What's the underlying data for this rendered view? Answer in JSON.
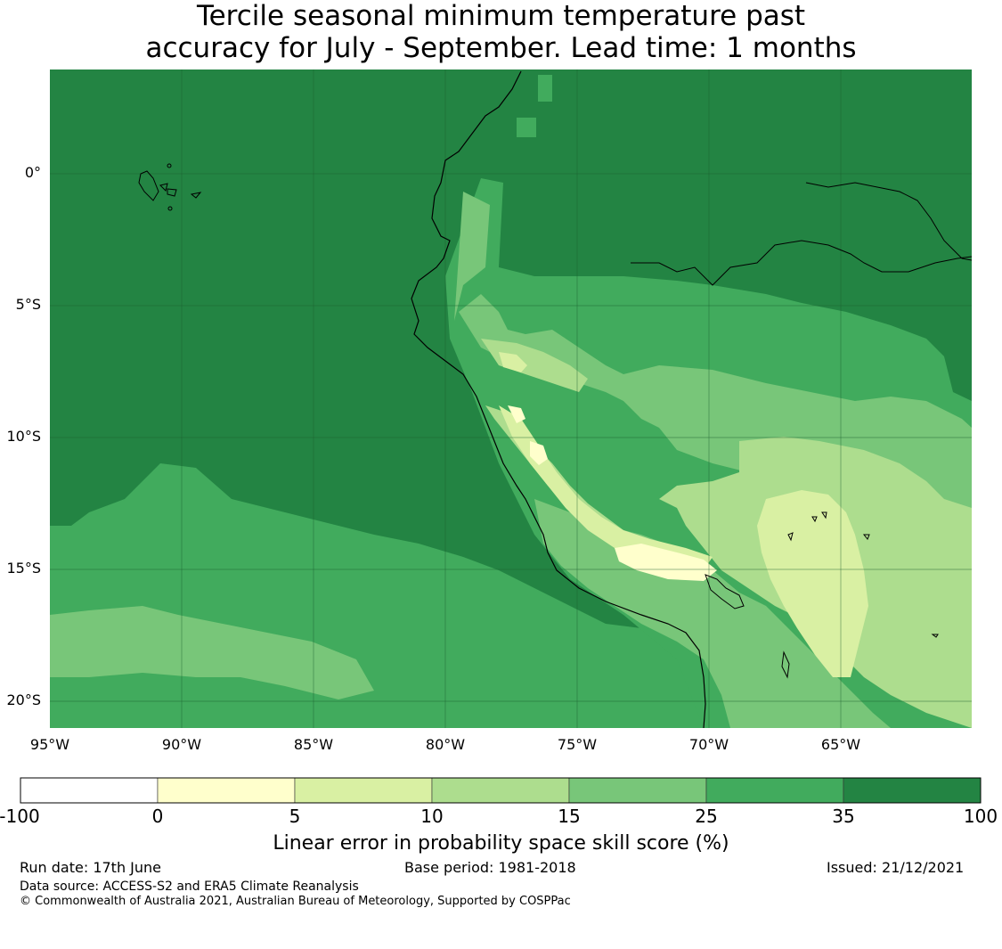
{
  "title_line1": "Tercile seasonal minimum temperature past",
  "title_line2": "accuracy for July - September. Lead time: 1 months",
  "map": {
    "lat_labels": [
      "0°",
      "5°S",
      "10°S",
      "15°S",
      "20°S"
    ],
    "lon_labels": [
      "95°W",
      "90°W",
      "85°W",
      "80°W",
      "75°W",
      "70°W",
      "65°W"
    ],
    "lat_range": [
      -21,
      4
    ],
    "lon_range": [
      -95,
      -60
    ]
  },
  "colorbar": {
    "title": "Linear error in probability space skill score (%)",
    "ticks": [
      "-100",
      "0",
      "5",
      "10",
      "15",
      "25",
      "35",
      "100"
    ],
    "colors": [
      "#ffffff",
      "#ffffcc",
      "#d9f0a3",
      "#addd8e",
      "#78c679",
      "#41ab5d",
      "#238443"
    ]
  },
  "footer": {
    "run_date": "Run date: 17th June",
    "base_period": "Base period: 1981-2018",
    "issued": "Issued: 21/12/2021",
    "data_source": "Data source: ACCESS-S2 and ERA5 Climate Reanalysis",
    "copyright": "© Commonwealth of Australia 2021, Australian Bureau of Meteorology, Supported by COSPPac"
  }
}
